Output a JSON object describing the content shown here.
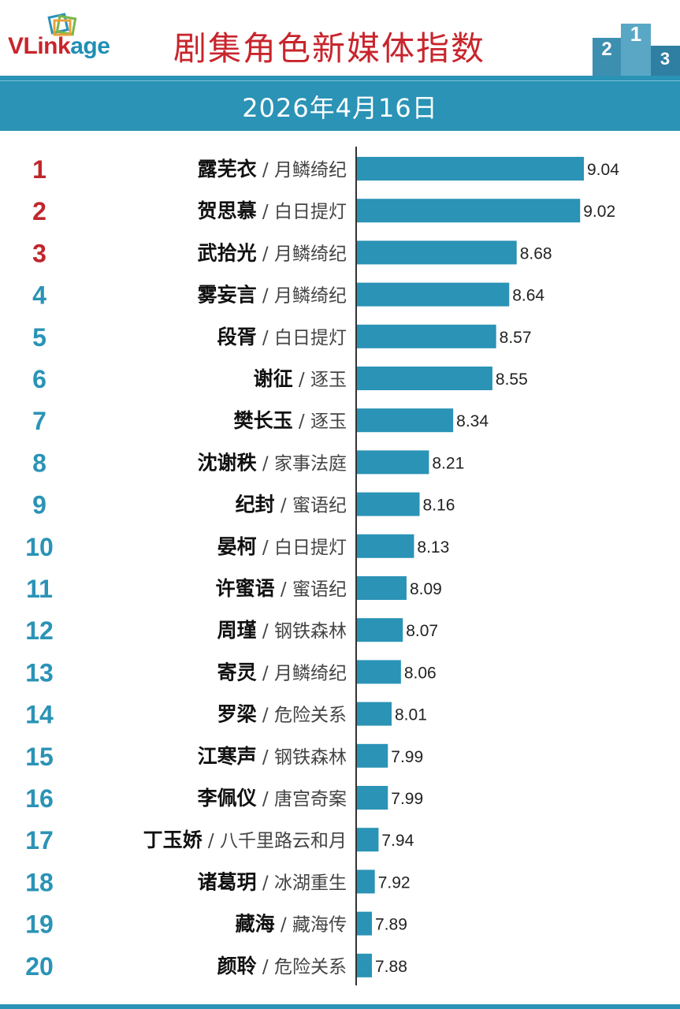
{
  "header": {
    "logo_main": "VLink",
    "logo_accent": "age",
    "title": "剧集角色新媒体指数",
    "date": "2026年4月16日",
    "podium": [
      "2",
      "1",
      "3"
    ]
  },
  "colors": {
    "bar": "#2a93b6",
    "top_rank": "#c0262d",
    "rank": "#2a93b6",
    "title": "#c8252c"
  },
  "chart_data": {
    "type": "bar",
    "orientation": "horizontal",
    "title": "剧集角色新媒体指数",
    "subtitle": "2026年4月16日",
    "ranks": [
      "1",
      "2",
      "3",
      "4",
      "5",
      "6",
      "7",
      "8",
      "9",
      "10",
      "11",
      "12",
      "13",
      "14",
      "15",
      "16",
      "17",
      "18",
      "19",
      "20"
    ],
    "names": [
      "露芜衣",
      "贺思慕",
      "武拾光",
      "雾妄言",
      "段胥",
      "谢征",
      "樊长玉",
      "沈谢秩",
      "纪封",
      "晏柯",
      "许蜜语",
      "周瑾",
      "寄灵",
      "罗梁",
      "江寒声",
      "李佩仪",
      "丁玉娇",
      "诸葛玥",
      "藏海",
      "颜聆"
    ],
    "dramas": [
      "月鳞绮纪",
      "白日提灯",
      "月鳞绮纪",
      "月鳞绮纪",
      "白日提灯",
      "逐玉",
      "逐玉",
      "家事法庭",
      "蜜语纪",
      "白日提灯",
      "蜜语纪",
      "钢铁森林",
      "月鳞绮纪",
      "危险关系",
      "钢铁森林",
      "唐宫奇案",
      "八千里路云和月",
      "冰湖重生",
      "藏海传",
      "危险关系"
    ],
    "values": [
      9.04,
      9.02,
      8.68,
      8.64,
      8.57,
      8.55,
      8.34,
      8.21,
      8.16,
      8.13,
      8.09,
      8.07,
      8.06,
      8.01,
      7.99,
      7.99,
      7.94,
      7.92,
      7.89,
      7.88
    ],
    "value_labels": [
      "9.04",
      "9.02",
      "8.68",
      "8.64",
      "8.57",
      "8.55",
      "8.34",
      "8.21",
      "8.16",
      "8.13",
      "8.09",
      "8.07",
      "8.06",
      "8.01",
      "7.99",
      "7.99",
      "7.94",
      "7.92",
      "7.89",
      "7.88"
    ],
    "separator": "/",
    "xlim": [
      7.82,
      9.04
    ]
  }
}
